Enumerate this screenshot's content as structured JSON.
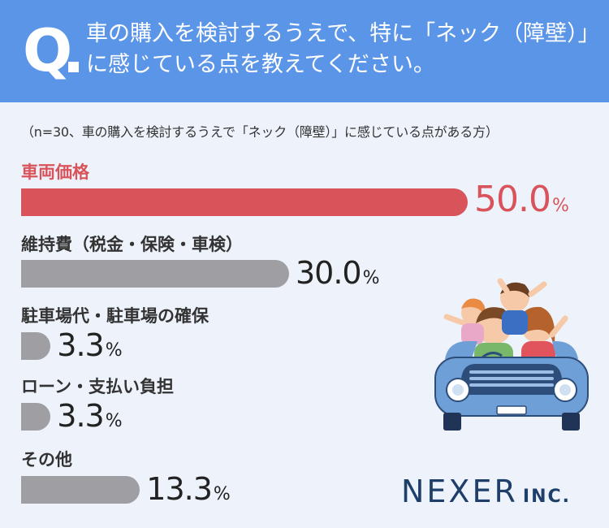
{
  "question": {
    "mark": "Q",
    "line1": "車の購入を検討するうえで、特に「ネック（障壁）」",
    "line2": "に感じている点を教えてください。"
  },
  "note": "（n=30、車の購入を検討するうえで「ネック（障壁）」に感じている点がある方）",
  "chart_data": {
    "type": "bar",
    "orientation": "horizontal",
    "categories": [
      "車両価格",
      "維持費（税金・保険・車検）",
      "駐車場代・駐車場の確保",
      "ローン・支払い負担",
      "その他"
    ],
    "values": [
      50.0,
      30.0,
      3.3,
      3.3,
      13.3
    ],
    "value_labels": [
      "50.0",
      "30.0",
      "3.3",
      "3.3",
      "13.3"
    ],
    "unit": "%",
    "xlim": [
      0,
      50
    ],
    "highlight_index": 0,
    "colors": {
      "highlight": "#d9545a",
      "default": "#9e9ea3"
    }
  },
  "logo": {
    "main": "NEXER",
    "suffix": "INC."
  },
  "colors": {
    "header": "#5b95e8",
    "background": "#eef3fb",
    "logo": "#1f3f6b"
  }
}
